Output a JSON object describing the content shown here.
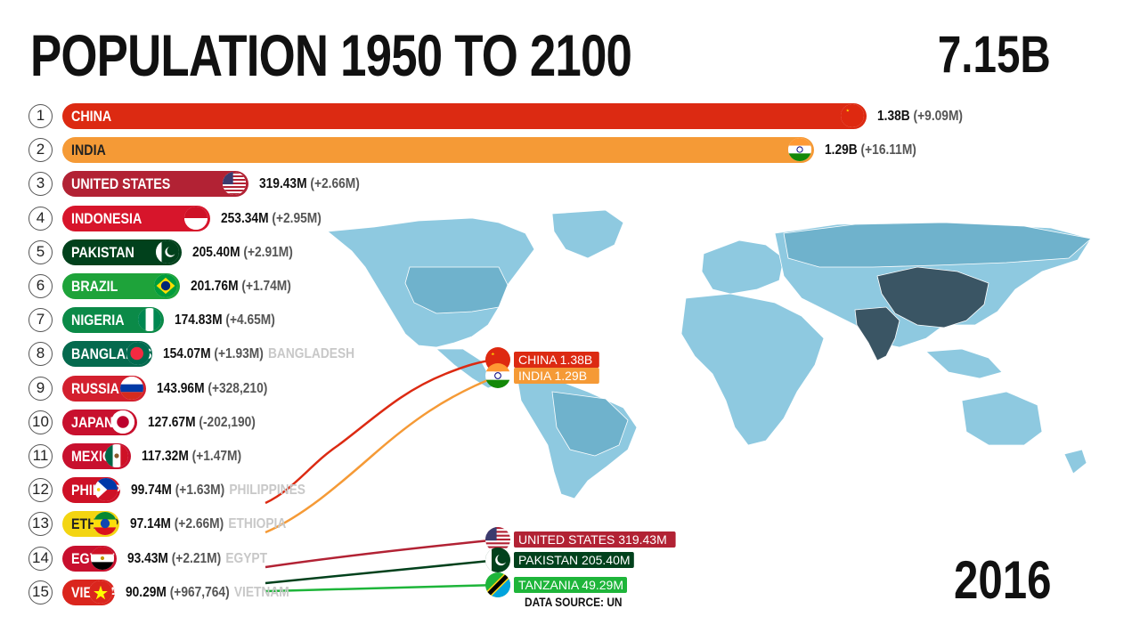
{
  "header": {
    "title": "POPULATION 1950 TO 2100",
    "total": "7.15B"
  },
  "footer": {
    "year": "2016",
    "source": "DATA SOURCE: UN"
  },
  "colors": {
    "map_land": "#8ec9e0",
    "map_dark": "#6fb2cc",
    "map_highlight": "#3a5564"
  },
  "chart_data": {
    "type": "bar",
    "x_scale_max": 1.38,
    "categories": [
      "CHINA",
      "INDIA",
      "UNITED STATES",
      "INDONESIA",
      "PAKISTAN",
      "BRAZIL",
      "NIGERIA",
      "BANGLADESH",
      "RUSSIA",
      "JAPAN",
      "MEXICO",
      "PHILIPPINES",
      "ETHIOPIA",
      "EGYPT",
      "VIETNAM"
    ],
    "rows": [
      {
        "rank": "1",
        "label": "CHINA",
        "value": 1380,
        "value_text": "1.38B",
        "change_text": "(+9.09M)",
        "ghost": "",
        "color": "#dc2a12",
        "flag": "cn-flag"
      },
      {
        "rank": "2",
        "label": "INDIA",
        "value": 1290,
        "value_text": "1.29B",
        "change_text": "(+16.11M)",
        "ghost": "",
        "color": "#f59a36",
        "flag": "in-flag",
        "dark_text": true
      },
      {
        "rank": "3",
        "label": "UNITED STATES",
        "value": 319.43,
        "value_text": "319.43M",
        "change_text": "(+2.66M)",
        "ghost": "",
        "color": "#b22234",
        "flag": "us-flag"
      },
      {
        "rank": "4",
        "label": "INDONESIA",
        "value": 253.34,
        "value_text": "253.34M",
        "change_text": "(+2.95M)",
        "ghost": "",
        "color": "#d7152b",
        "flag": "id-flag"
      },
      {
        "rank": "5",
        "label": "PAKISTAN",
        "value": 205.4,
        "value_text": "205.40M",
        "change_text": "(+2.91M)",
        "ghost": "",
        "color": "#01411c",
        "flag": "pk-flag"
      },
      {
        "rank": "6",
        "label": "BRAZIL",
        "value": 201.76,
        "value_text": "201.76M",
        "change_text": "(+1.74M)",
        "ghost": "",
        "color": "#1ea33a",
        "flag": "br-flag"
      },
      {
        "rank": "7",
        "label": "NIGERIA",
        "value": 174.83,
        "value_text": "174.83M",
        "change_text": "(+4.65M)",
        "ghost": "",
        "color": "#0b8a48",
        "flag": "ng-flag"
      },
      {
        "rank": "8",
        "label": "BANGLADESH",
        "value": 154.07,
        "value_text": "154.07M",
        "change_text": "(+1.93M)",
        "ghost": "BANGLADESH",
        "color": "#056a4e",
        "flag": "bd-flag"
      },
      {
        "rank": "9",
        "label": "RUSSIA",
        "value": 143.96,
        "value_text": "143.96M",
        "change_text": "(+328,210)",
        "ghost": "",
        "color": "#d3202e",
        "flag": "ru-flag"
      },
      {
        "rank": "10",
        "label": "JAPAN",
        "value": 127.67,
        "value_text": "127.67M",
        "change_text": "(-202,190)",
        "ghost": "",
        "color": "#c8102e",
        "flag": "jp-flag"
      },
      {
        "rank": "11",
        "label": "MEXICO",
        "value": 117.32,
        "value_text": "117.32M",
        "change_text": "(+1.47M)",
        "ghost": "",
        "color": "#c8102e",
        "flag": "mx-flag"
      },
      {
        "rank": "12",
        "label": "PHILIPPINES",
        "value": 99.74,
        "value_text": "99.74M",
        "change_text": "(+1.63M)",
        "ghost": "PHILIPPINES",
        "color": "#ce1126",
        "flag": "ph-flag"
      },
      {
        "rank": "13",
        "label": "ETHIOPIA",
        "value": 97.14,
        "value_text": "97.14M",
        "change_text": "(+2.66M)",
        "ghost": "ETHIOPIA",
        "color": "#f3d512",
        "flag": "et-flag",
        "dark_text": true
      },
      {
        "rank": "14",
        "label": "EGYPT",
        "value": 93.43,
        "value_text": "93.43M",
        "change_text": "(+2.21M)",
        "ghost": "EGYPT",
        "color": "#c8102e",
        "flag": "eg-flag"
      },
      {
        "rank": "15",
        "label": "VIETNAM",
        "value": 90.29,
        "value_text": "90.29M",
        "change_text": "(+967,764)",
        "ghost": "VIETNAM",
        "color": "#da251d",
        "flag": "vn-flag"
      }
    ],
    "trend_series": [
      {
        "name": "CHINA",
        "label": "CHINA 1.38B",
        "color": "#dc2a12",
        "flag": "cn-flag"
      },
      {
        "name": "INDIA",
        "label": "INDIA 1.29B",
        "color": "#f59a36",
        "flag": "in-flag"
      },
      {
        "name": "UNITED STATES",
        "label": "UNITED STATES  319.43M",
        "color": "#b22234",
        "flag": "us-flag"
      },
      {
        "name": "PAKISTAN",
        "label": "PAKISTAN 205.40M",
        "color": "#01411c",
        "flag": "pk-flag"
      },
      {
        "name": "TANZANIA",
        "label": "TANZANIA 49.29M",
        "color": "#1eb53a",
        "flag": "tz-flag"
      }
    ]
  }
}
